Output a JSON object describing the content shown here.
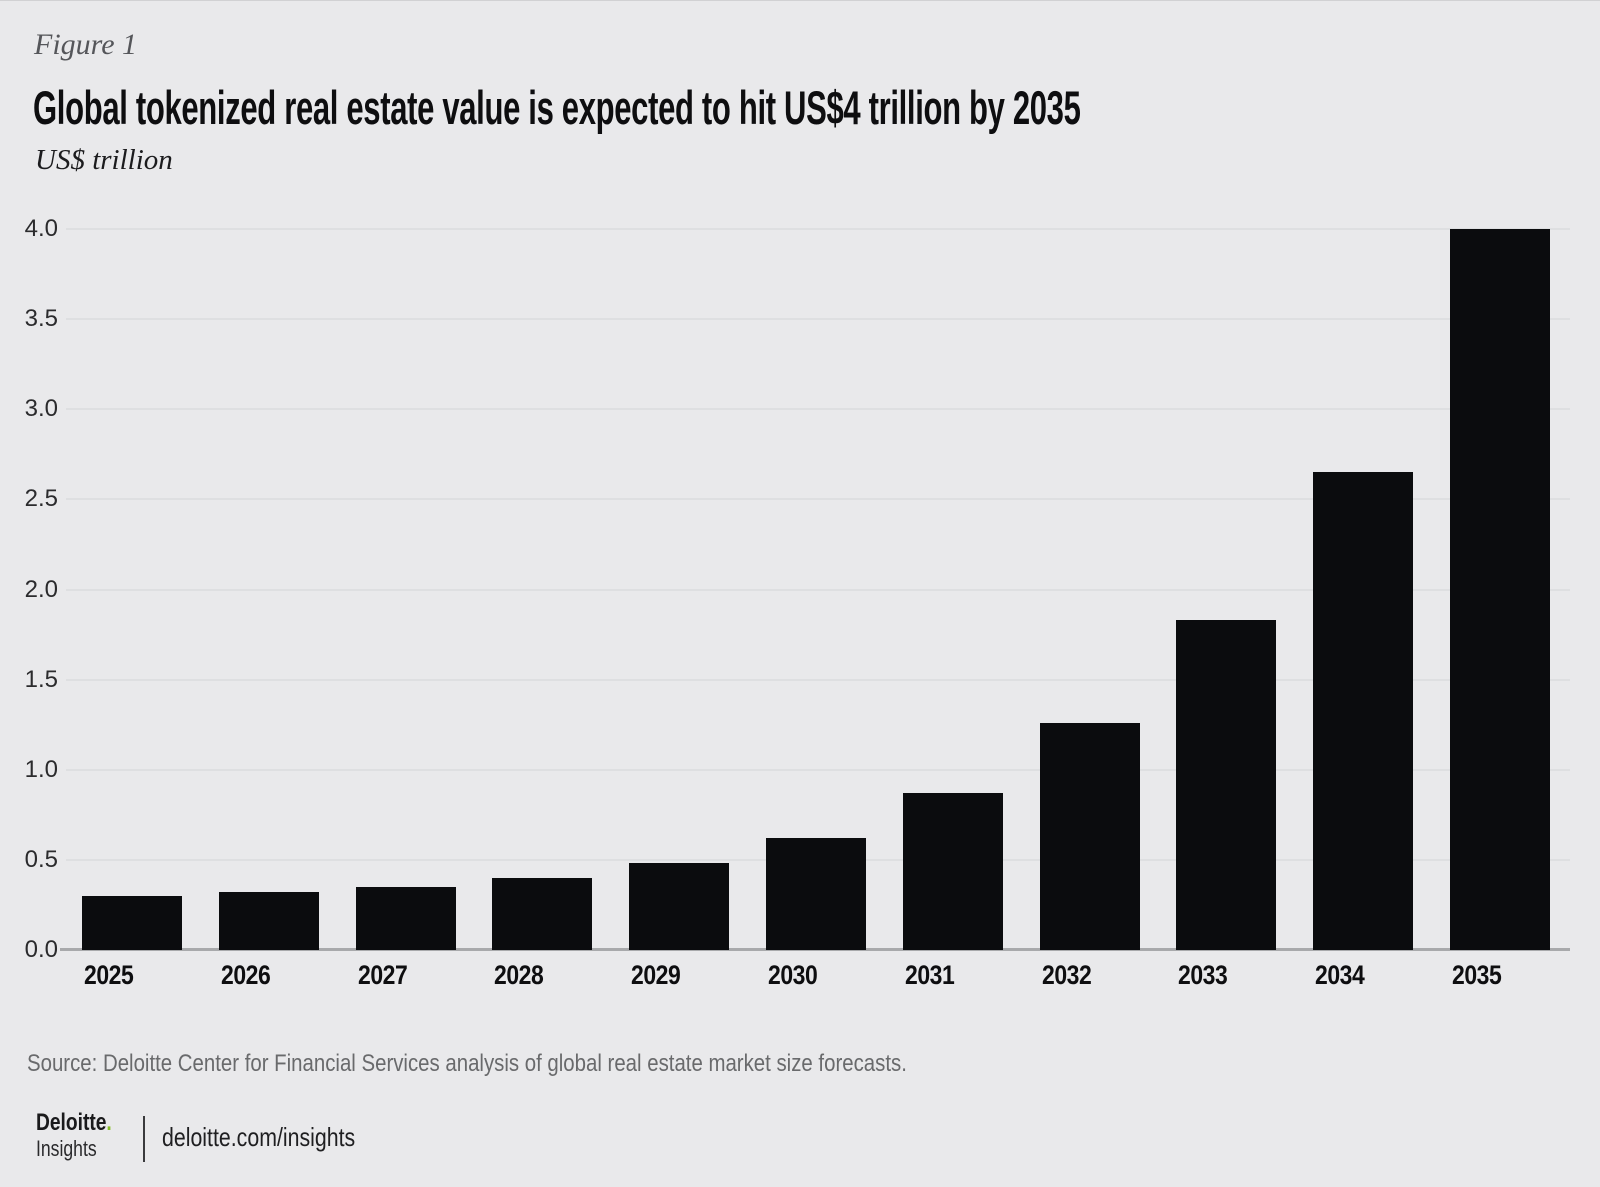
{
  "figure_label": "Figure 1",
  "title": "Global tokenized real estate value is expected to hit US$4 trillion by 2035",
  "units_label": "US$ trillion",
  "source_note": "Source: Deloitte Center for Financial Services analysis of global real estate market size forecasts.",
  "footer": {
    "brand_name": "Deloitte",
    "brand_period": ".",
    "brand_subtitle": "Insights",
    "site_link": "deloitte.com/insights"
  },
  "colors": {
    "background": "#e9e9eb",
    "bar": "#0b0c0e",
    "gridline": "#dedfe1",
    "axis_line": "#a8a9ab",
    "title_text": "#0e0e10",
    "figure_label_text": "#55565a",
    "units_text": "#1c1c1e",
    "tick_text": "#2b2b2d",
    "source_text": "#696a6c",
    "brand_green": "#86bc25"
  },
  "chart_data": {
    "type": "bar",
    "title": "Global tokenized real estate value is expected to hit US$4 trillion by 2035",
    "xlabel": "",
    "ylabel": "US$ trillion",
    "categories": [
      "2025",
      "2026",
      "2027",
      "2028",
      "2029",
      "2030",
      "2031",
      "2032",
      "2033",
      "2034",
      "2035"
    ],
    "values": [
      0.3,
      0.32,
      0.35,
      0.4,
      0.48,
      0.62,
      0.87,
      1.26,
      1.83,
      2.65,
      4.0
    ],
    "ylim": [
      0,
      4
    ],
    "ytick_interval": 0.5,
    "ytick_labels": [
      "0.0",
      "0.5",
      "1.0",
      "1.5",
      "2.0",
      "2.5",
      "3.0",
      "3.5",
      "4.0"
    ],
    "grid": true,
    "legend": null,
    "bar_color": "#0b0c0e"
  }
}
